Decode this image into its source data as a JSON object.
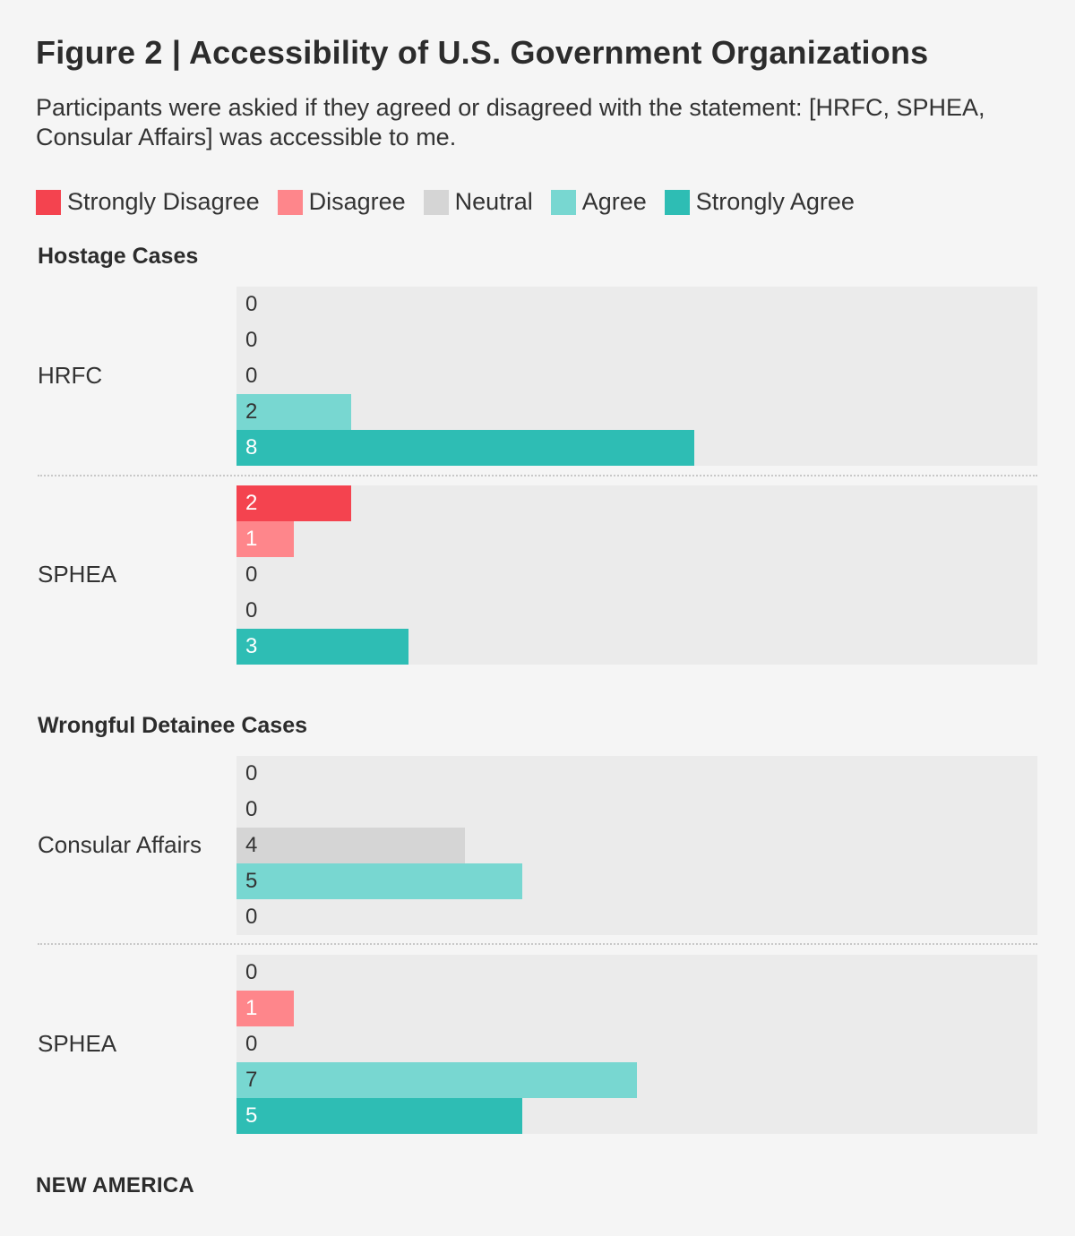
{
  "title": "Figure 2 | Accessibility of U.S. Government Organizations",
  "subtitle": "Participants were askied if they agreed or disagreed with the statement: [HRFC, SPHEA, Consular Affairs] was accessible to me.",
  "footer": "NEW AMERICA",
  "chart_data": {
    "type": "bar",
    "orientation": "horizontal",
    "title": "Figure 2 | Accessibility of U.S. Government Organizations",
    "xlim": [
      0,
      14
    ],
    "categories": [
      "Strongly Disagree",
      "Disagree",
      "Neutral",
      "Agree",
      "Strongly Agree"
    ],
    "legend": [
      {
        "label": "Strongly Disagree",
        "color": "#f4434f"
      },
      {
        "label": "Disagree",
        "color": "#fe868b"
      },
      {
        "label": "Neutral",
        "color": "#d5d5d5"
      },
      {
        "label": "Agree",
        "color": "#78d7d1"
      },
      {
        "label": "Strongly Agree",
        "color": "#2ebdb4"
      }
    ],
    "sections": [
      {
        "title": "Hostage Cases",
        "groups": [
          {
            "label": "HRFC",
            "values": [
              0,
              0,
              0,
              2,
              8
            ]
          },
          {
            "label": "SPHEA",
            "values": [
              2,
              1,
              0,
              0,
              3
            ]
          }
        ]
      },
      {
        "title": "Wrongful Detainee Cases",
        "groups": [
          {
            "label": "Consular Affairs",
            "values": [
              0,
              0,
              4,
              5,
              0
            ]
          },
          {
            "label": "SPHEA",
            "values": [
              0,
              1,
              0,
              7,
              5
            ]
          }
        ]
      }
    ]
  }
}
